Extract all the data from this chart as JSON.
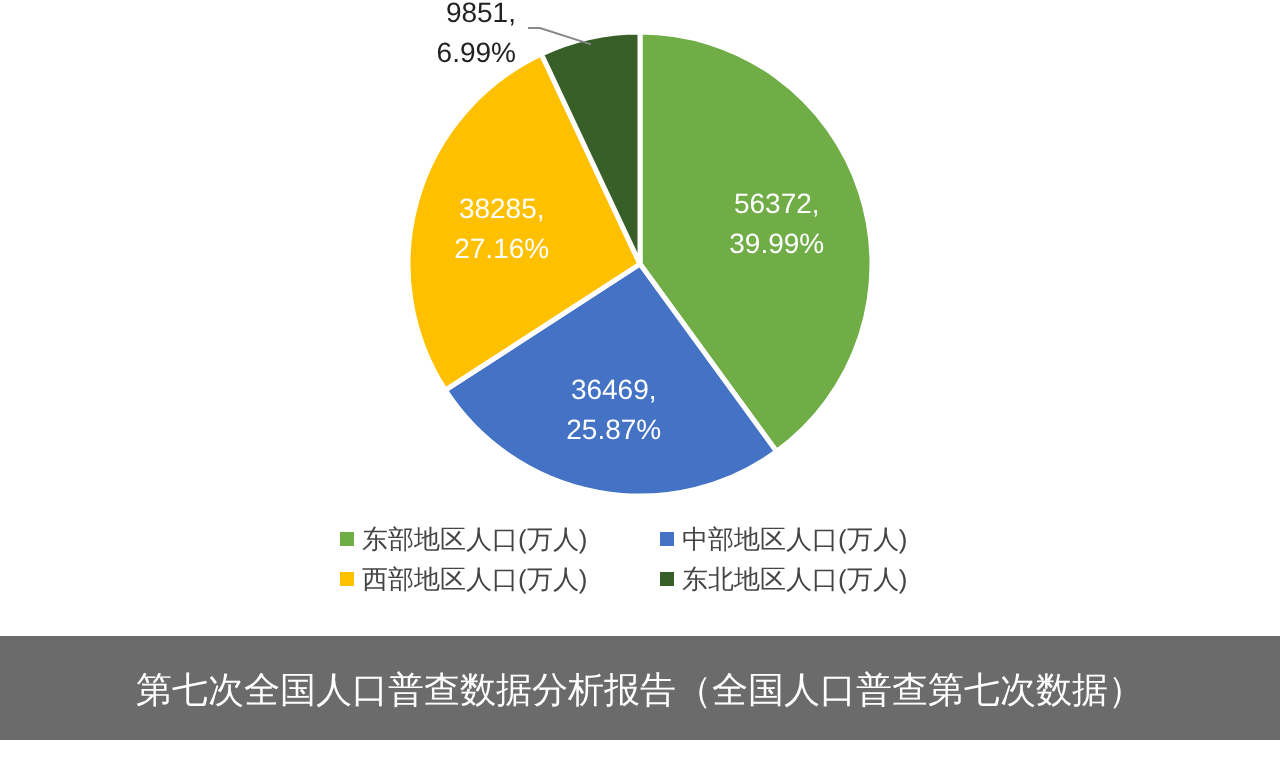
{
  "chart_data": {
    "type": "pie",
    "title": "第七次全国人口普查数据分析报告（全国人口普查第七次数据）",
    "categories": [
      "东部地区人口(万人)",
      "中部地区人口(万人)",
      "西部地区人口(万人)",
      "东北地区人口(万人)"
    ],
    "values": [
      56372,
      36469,
      38285,
      9851
    ],
    "value_labels": [
      "56372, 39.99%",
      "36469, 25.87%",
      "38285, 27.16%",
      "9851, 6.99%"
    ],
    "colors": [
      "#70ad47",
      "#4472c4",
      "#ffc000",
      "#385f28"
    ],
    "legend": "bottom"
  }
}
